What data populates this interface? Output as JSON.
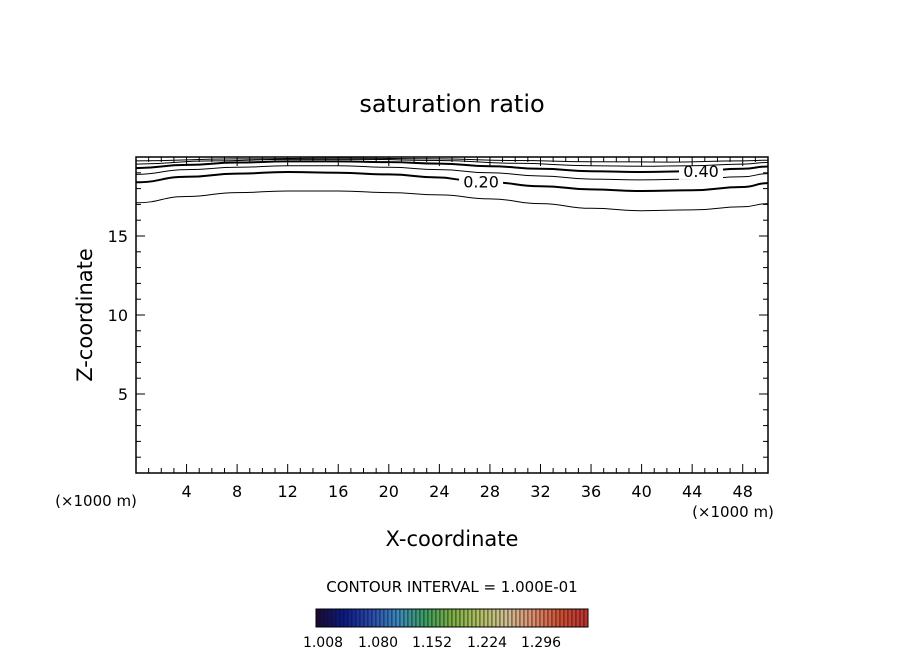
{
  "chart_data": {
    "type": "contour",
    "title": "saturation ratio",
    "xlabel": "X-coordinate",
    "ylabel": "Z-coordinate",
    "x_unit_left": "(×1000 m)",
    "x_unit_right": "(×1000 m)",
    "xlim": [
      0,
      50
    ],
    "ylim": [
      0,
      20
    ],
    "xticks": [
      4,
      8,
      12,
      16,
      20,
      24,
      28,
      32,
      36,
      40,
      44,
      48
    ],
    "yticks": [
      5,
      10,
      15
    ],
    "contour_interval_text": "CONTOUR INTERVAL = 1.000E-01",
    "contours": [
      {
        "level": 0.1,
        "label": "",
        "points": [
          [
            0,
            17.1
          ],
          [
            4,
            17.5
          ],
          [
            8,
            17.75
          ],
          [
            12,
            17.85
          ],
          [
            16,
            17.85
          ],
          [
            20,
            17.75
          ],
          [
            24,
            17.6
          ],
          [
            28,
            17.35
          ],
          [
            32,
            17.05
          ],
          [
            36,
            16.75
          ],
          [
            40,
            16.6
          ],
          [
            44,
            16.65
          ],
          [
            48,
            16.85
          ],
          [
            50,
            17.05
          ]
        ]
      },
      {
        "level": 0.2,
        "label": "0.20",
        "points": [
          [
            0,
            18.4
          ],
          [
            4,
            18.75
          ],
          [
            8,
            18.95
          ],
          [
            12,
            19.05
          ],
          [
            16,
            19.0
          ],
          [
            20,
            18.9
          ],
          [
            24,
            18.7
          ],
          [
            26,
            18.55
          ],
          [
            28,
            18.4
          ],
          [
            32,
            18.15
          ],
          [
            36,
            17.95
          ],
          [
            40,
            17.85
          ],
          [
            44,
            17.9
          ],
          [
            48,
            18.1
          ],
          [
            50,
            18.35
          ]
        ]
      },
      {
        "level": 0.3,
        "label": "",
        "points": [
          [
            0,
            18.9
          ],
          [
            4,
            19.2
          ],
          [
            8,
            19.35
          ],
          [
            12,
            19.45
          ],
          [
            16,
            19.45
          ],
          [
            20,
            19.35
          ],
          [
            24,
            19.2
          ],
          [
            28,
            19.0
          ],
          [
            32,
            18.8
          ],
          [
            36,
            18.6
          ],
          [
            40,
            18.55
          ],
          [
            44,
            18.6
          ],
          [
            48,
            18.75
          ],
          [
            50,
            18.95
          ]
        ]
      },
      {
        "level": 0.4,
        "label": "0.40",
        "points": [
          [
            0,
            19.3
          ],
          [
            4,
            19.5
          ],
          [
            8,
            19.65
          ],
          [
            12,
            19.72
          ],
          [
            16,
            19.72
          ],
          [
            20,
            19.68
          ],
          [
            24,
            19.58
          ],
          [
            28,
            19.42
          ],
          [
            32,
            19.25
          ],
          [
            36,
            19.1
          ],
          [
            40,
            19.05
          ],
          [
            44,
            19.1
          ],
          [
            48,
            19.25
          ],
          [
            50,
            19.4
          ]
        ]
      },
      {
        "level": 0.5,
        "label": "",
        "points": [
          [
            0,
            19.55
          ],
          [
            6,
            19.75
          ],
          [
            12,
            19.85
          ],
          [
            18,
            19.85
          ],
          [
            24,
            19.78
          ],
          [
            30,
            19.6
          ],
          [
            36,
            19.45
          ],
          [
            40,
            19.42
          ],
          [
            44,
            19.45
          ],
          [
            48,
            19.55
          ],
          [
            50,
            19.65
          ]
        ]
      },
      {
        "level": 0.6,
        "label": "",
        "points": [
          [
            0,
            19.75
          ],
          [
            8,
            19.88
          ],
          [
            16,
            19.93
          ],
          [
            24,
            19.88
          ],
          [
            30,
            19.78
          ],
          [
            36,
            19.7
          ],
          [
            42,
            19.68
          ],
          [
            48,
            19.75
          ],
          [
            50,
            19.8
          ]
        ]
      }
    ],
    "colorbar": {
      "tick_labels": [
        "1.008",
        "1.080",
        "1.152",
        "1.224",
        "1.296"
      ],
      "colors": [
        "#1a0a3a",
        "#0a1a8a",
        "#2a4ab0",
        "#3a8ac0",
        "#3aa060",
        "#7ab040",
        "#b0c060",
        "#d0c090",
        "#e09070",
        "#d05030",
        "#c03030"
      ]
    }
  }
}
